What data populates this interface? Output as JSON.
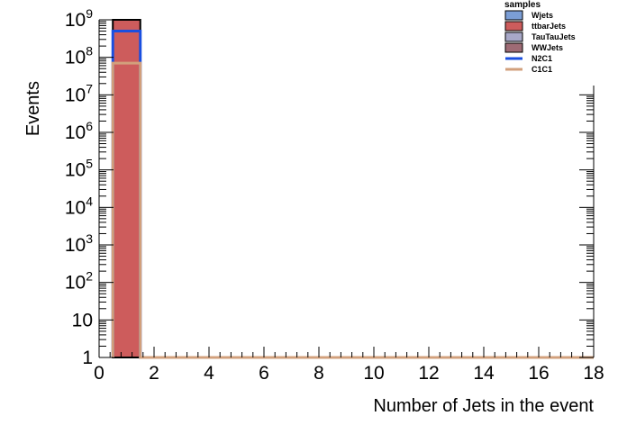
{
  "chart_data": {
    "type": "bar",
    "title": "",
    "xlabel": "Number of Jets in the event",
    "ylabel": "Events",
    "xlim": [
      0,
      18
    ],
    "ylim": [
      1,
      1000000000
    ],
    "yscale": "log",
    "x_ticks": [
      "0",
      "2",
      "4",
      "6",
      "8",
      "10",
      "12",
      "14",
      "16",
      "18"
    ],
    "y_ticks": [
      {
        "base": "1",
        "exp": ""
      },
      {
        "base": "10",
        "exp": ""
      },
      {
        "base": "10",
        "exp": "2"
      },
      {
        "base": "10",
        "exp": "3"
      },
      {
        "base": "10",
        "exp": "4"
      },
      {
        "base": "10",
        "exp": "5"
      },
      {
        "base": "10",
        "exp": "6"
      },
      {
        "base": "10",
        "exp": "7"
      },
      {
        "base": "10",
        "exp": "8"
      },
      {
        "base": "10",
        "exp": "9"
      }
    ],
    "bin_edges": [
      0.5,
      1.5
    ],
    "legend_title": "samples",
    "legend_position": "top-right",
    "grid": false,
    "stacked_series": [
      {
        "name": "Wjets",
        "color": "#7b9ed6",
        "values": [
          0
        ]
      },
      {
        "name": "ttbarJets",
        "color": "#cd5c5c",
        "values": [
          1000000000
        ]
      },
      {
        "name": "TauTauJets",
        "color": "#a8a8c8",
        "values": [
          0
        ]
      },
      {
        "name": "WWJets",
        "color": "#9e6b75",
        "values": [
          0
        ]
      }
    ],
    "line_series": [
      {
        "name": "N2C1",
        "color": "#1a4fe0",
        "values": [
          500000000
        ]
      },
      {
        "name": "C1C1",
        "color": "#d2a07c",
        "values": [
          70000000
        ]
      }
    ]
  }
}
